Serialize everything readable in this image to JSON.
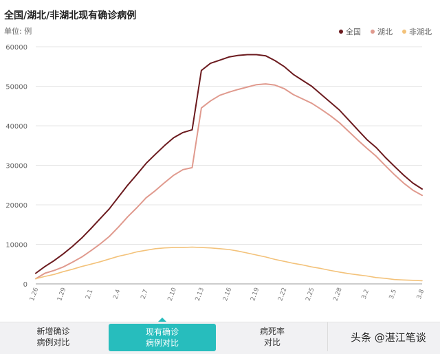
{
  "header": {
    "title": "全国/湖北/非湖北现有确诊病例",
    "unit": "单位: 例"
  },
  "tabs": [
    {
      "label": "新增确诊\n病例对比",
      "active": false
    },
    {
      "label": "现有确诊\n病例对比",
      "active": true
    },
    {
      "label": "病死率\n对比",
      "active": false
    },
    {
      "label": "",
      "active": false
    }
  ],
  "watermark": "头条 @湛江笔谈",
  "colors": {
    "national": "#6b1a1e",
    "hubei": "#e09a8e",
    "non_hubei": "#f3c27a",
    "accent": "#27bdbd"
  },
  "chart_data": {
    "type": "line",
    "x": [
      "1.26",
      "1.27",
      "1.28",
      "1.29",
      "1.30",
      "1.31",
      "2.1",
      "2.2",
      "2.3",
      "2.4",
      "2.5",
      "2.6",
      "2.7",
      "2.8",
      "2.9",
      "2.10",
      "2.11",
      "2.12",
      "2.13",
      "2.14",
      "2.15",
      "2.16",
      "2.17",
      "2.18",
      "2.19",
      "2.20",
      "2.21",
      "2.22",
      "2.23",
      "2.24",
      "2.25",
      "2.26",
      "2.27",
      "2.28",
      "2.29",
      "3.1",
      "3.2",
      "3.3",
      "3.4",
      "3.5",
      "3.6",
      "3.7",
      "3.8"
    ],
    "x_tick_labels": [
      "1.26",
      "1.29",
      "2.1",
      "2.4",
      "2.7",
      "2.10",
      "2.13",
      "2.16",
      "2.19",
      "2.22",
      "2.25",
      "2.28",
      "3.2",
      "3.5",
      "3.8"
    ],
    "y_ticks": [
      0,
      10000,
      20000,
      30000,
      40000,
      50000,
      60000
    ],
    "ylim": [
      0,
      60000
    ],
    "grid": true,
    "legend_position": "top-right",
    "series": [
      {
        "name": "全国",
        "color": "#6b1a1e",
        "values": [
          2700,
          4400,
          5900,
          7600,
          9500,
          11600,
          14000,
          16500,
          19000,
          22000,
          25000,
          27700,
          30500,
          32800,
          35000,
          37000,
          38300,
          39000,
          54000,
          55800,
          56600,
          57400,
          57800,
          58000,
          58000,
          57700,
          56500,
          55000,
          53000,
          51500,
          50000,
          48000,
          46000,
          44000,
          41500,
          39000,
          36500,
          34500,
          32000,
          29700,
          27500,
          25500,
          24000
        ]
      },
      {
        "name": "湖北",
        "color": "#e09a8e",
        "values": [
          1300,
          2700,
          3400,
          4300,
          5500,
          6800,
          8400,
          10100,
          12000,
          14400,
          17000,
          19300,
          21800,
          23600,
          25600,
          27500,
          28900,
          29400,
          44500,
          46300,
          47700,
          48500,
          49200,
          49800,
          50400,
          50600,
          50300,
          49400,
          47900,
          46800,
          45700,
          44200,
          42600,
          40800,
          38600,
          36400,
          34300,
          32300,
          29900,
          27600,
          25500,
          23700,
          22400
        ]
      },
      {
        "name": "非湖北",
        "color": "#f3c27a",
        "values": [
          1300,
          1900,
          2400,
          3100,
          3700,
          4400,
          5000,
          5600,
          6300,
          7000,
          7500,
          8100,
          8500,
          8900,
          9100,
          9200,
          9200,
          9300,
          9200,
          9100,
          8900,
          8700,
          8300,
          7800,
          7300,
          6800,
          6200,
          5700,
          5200,
          4800,
          4300,
          3900,
          3400,
          3000,
          2600,
          2300,
          2000,
          1600,
          1400,
          1100,
          1000,
          900,
          800
        ]
      }
    ]
  }
}
